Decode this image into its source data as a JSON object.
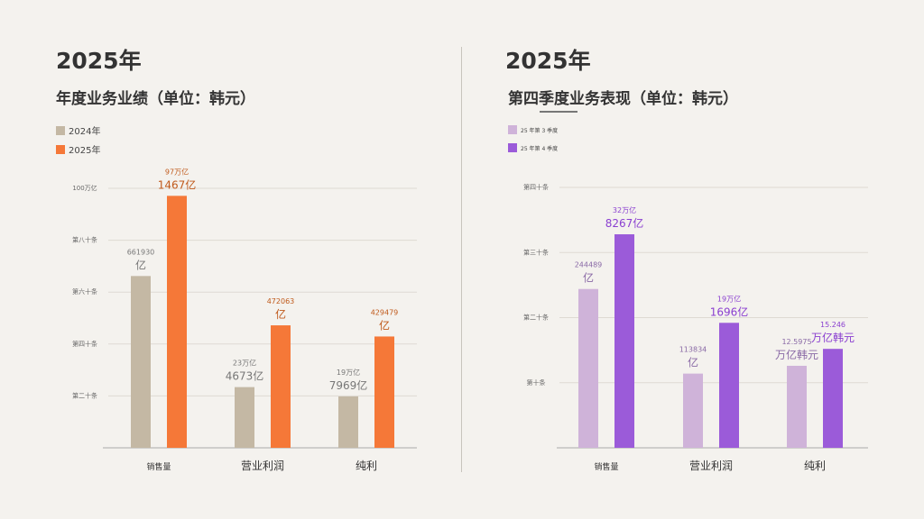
{
  "left": {
    "year": "2025年",
    "subtitle": "年度业务业绩（单位：韩元）",
    "legend": [
      {
        "label": "2024年",
        "color": "#c4b8a4"
      },
      {
        "label": "2025年",
        "color": "#f57838"
      }
    ]
  },
  "right": {
    "year": "2025年",
    "subtitle": "第四季度业务表现（单位：韩元）",
    "legend": [
      {
        "label": "25 年第 3 季度",
        "color": "#cfb3d9"
      },
      {
        "label": "25 年第 4 季度",
        "color": "#9b5bd9"
      }
    ]
  },
  "chart_data": [
    {
      "type": "bar",
      "categories": [
        "销售量",
        "营业利润",
        "纯利"
      ],
      "ytick_labels": [
        "第二十条",
        "第四十条",
        "第六十条",
        "第八十条",
        "100万亿"
      ],
      "ytick_values": [
        20,
        40,
        60,
        80,
        100
      ],
      "ylim": [
        0,
        100
      ],
      "grid": true,
      "legend_position": "top-left",
      "series": [
        {
          "name": "2024年",
          "color": "#c4b8a4",
          "values": [
            66.2,
            23.4,
            19.8
          ],
          "labels": [
            [
              "661930",
              "亿"
            ],
            [
              "23万亿",
              "4673亿"
            ],
            [
              "19万亿",
              "7969亿"
            ]
          ]
        },
        {
          "name": "2025年",
          "color": "#f57838",
          "values": [
            97.1,
            47.2,
            42.9
          ],
          "labels": [
            [
              "97万亿",
              "1467亿"
            ],
            [
              "472063",
              "亿"
            ],
            [
              "429479",
              "亿"
            ]
          ]
        }
      ]
    },
    {
      "type": "bar",
      "categories": [
        "销售量",
        "营业利润",
        "纯利"
      ],
      "ytick_labels": [
        "第十条",
        "第二十条",
        "第三十条",
        "第四十条"
      ],
      "ytick_values": [
        10,
        20,
        30,
        40
      ],
      "ylim": [
        0,
        40
      ],
      "grid": true,
      "legend_position": "top-left",
      "series": [
        {
          "name": "25 年第 3 季度",
          "color": "#cfb3d9",
          "values": [
            24.4,
            11.4,
            12.6
          ],
          "labels": [
            [
              "244489",
              "亿"
            ],
            [
              "113834",
              "亿"
            ],
            [
              "12.5975",
              "万亿韩元"
            ]
          ]
        },
        {
          "name": "25 年第 4 季度",
          "color": "#9b5bd9",
          "values": [
            32.8,
            19.2,
            15.2
          ],
          "labels": [
            [
              "32万亿",
              "8267亿"
            ],
            [
              "19万亿",
              "1696亿"
            ],
            [
              "15.246",
              "万亿韩元"
            ]
          ]
        }
      ]
    }
  ]
}
